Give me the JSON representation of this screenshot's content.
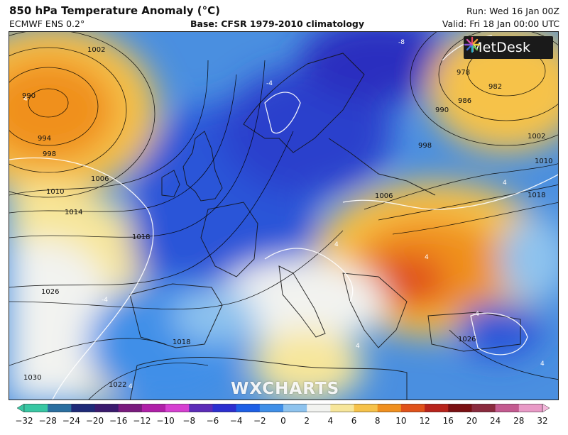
{
  "header": {
    "title": "850 hPa Temperature Anomaly (°C)",
    "model": "ECMWF ENS 0.2°",
    "base": "Base: CFSR 1979-2010 climatology",
    "run": "Run: Wed 16 Jan 00Z",
    "valid": "Valid: Fri 18 Jan 00:00 UTC"
  },
  "logo": {
    "text": "MetDesk",
    "icon": "metdesk-star-icon"
  },
  "watermark": "WXCHARTS",
  "isobar_labels": [
    "1002",
    "990",
    "994",
    "998",
    "1006",
    "1010",
    "1014",
    "1018",
    "1026",
    "1030",
    "1022",
    "978",
    "982",
    "986",
    "990",
    "998",
    "1002",
    "1010",
    "1018",
    "1006",
    "1018",
    "1026"
  ],
  "contour_labels_white": [
    "-8",
    "-4",
    "4",
    "-4",
    "4",
    "4",
    "4",
    "-4",
    "4",
    "4",
    "4"
  ],
  "colorbar": {
    "ticks": [
      "−32",
      "−28",
      "−24",
      "−20",
      "−16",
      "−12",
      "−10",
      "−8",
      "−6",
      "−4",
      "−2",
      "0",
      "2",
      "4",
      "6",
      "8",
      "10",
      "12",
      "16",
      "20",
      "24",
      "28",
      "32"
    ],
    "colors": [
      "#38c7a3",
      "#2a6fa0",
      "#1e2a78",
      "#3b1a6e",
      "#7a1a7e",
      "#b01fa8",
      "#d63fd1",
      "#5c2bb8",
      "#2c2fd0",
      "#1d5fe6",
      "#3f8fe8",
      "#8ec3ee",
      "#f2f3f0",
      "#f7e69a",
      "#f6c24a",
      "#f0901f",
      "#e0521a",
      "#b8231b",
      "#7a0f12",
      "#8a2a3e",
      "#c45a90",
      "#e99ac7"
    ]
  }
}
